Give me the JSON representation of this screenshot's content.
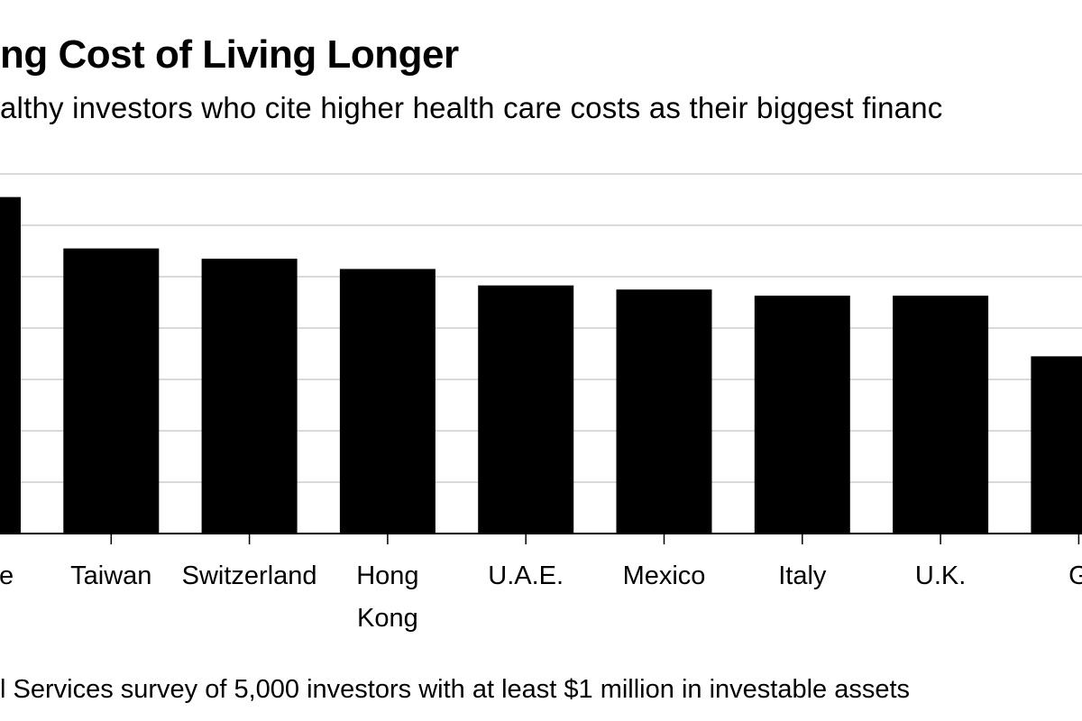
{
  "title": "ng Cost of Living Longer",
  "subtitle": "althy investors who cite higher health care costs as their biggest financ",
  "footnote": "l Services survey of 5,000 investors with at least $1 million in investable assets",
  "chart_data": {
    "type": "bar",
    "title": "ng Cost of Living Longer",
    "subtitle": "althy investors who cite higher health care costs as their biggest financ",
    "categories": [
      "gapore",
      "Taiwan",
      "Switzerland",
      "Hong Kong",
      "U.A.E.",
      "Mexico",
      "Italy",
      "U.K.",
      "G"
    ],
    "category_lines": [
      [
        "gapore"
      ],
      [
        "Taiwan"
      ],
      [
        "Switzerland"
      ],
      [
        "Hong",
        "Kong"
      ],
      [
        "U.A.E."
      ],
      [
        "Mexico"
      ],
      [
        "Italy"
      ],
      [
        "U.K."
      ],
      [
        "G"
      ]
    ],
    "values": [
      65.5,
      55.5,
      53.5,
      51.5,
      48.3,
      47.5,
      46.3,
      46.3,
      34.5
    ],
    "ylim": [
      0,
      70
    ],
    "grid_step": 10,
    "grid": true,
    "xlabel": "",
    "ylabel": "",
    "colors": {
      "bar": "#000000",
      "grid": "#d9d9d9",
      "axis": "#000000"
    }
  }
}
